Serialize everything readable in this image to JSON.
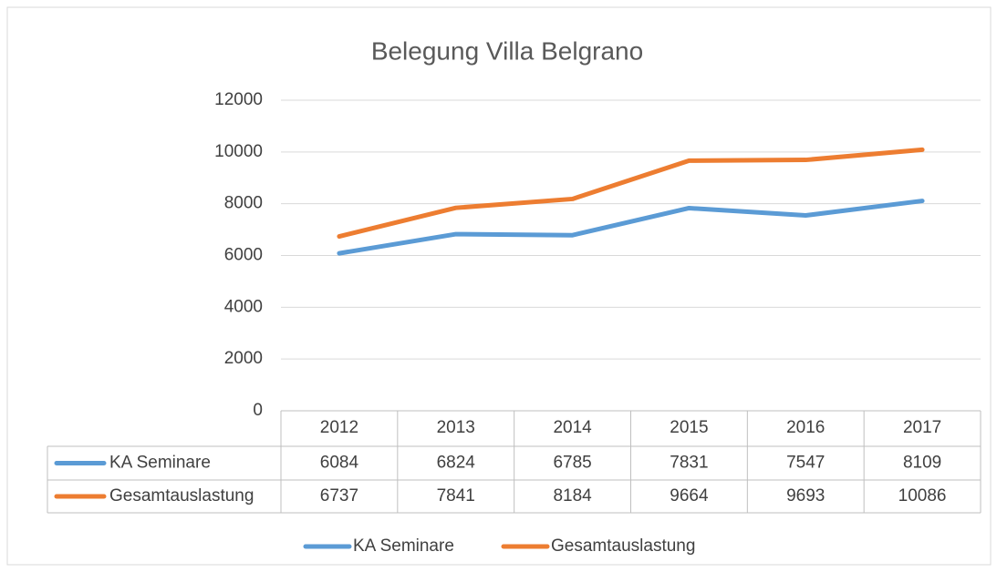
{
  "chart_data": {
    "type": "line",
    "title": "Belegung Villa Belgrano",
    "categories": [
      "2012",
      "2013",
      "2014",
      "2015",
      "2016",
      "2017"
    ],
    "series": [
      {
        "name": "KA Seminare",
        "color": "#5b9bd5",
        "values": [
          6084,
          6824,
          6785,
          7831,
          7547,
          8109
        ]
      },
      {
        "name": "Gesamtauslastung",
        "color": "#ed7d31",
        "values": [
          6737,
          7841,
          8184,
          9664,
          9693,
          10086
        ]
      }
    ],
    "ylim": [
      0,
      12000
    ],
    "yticks": [
      0,
      2000,
      4000,
      6000,
      8000,
      10000,
      12000
    ],
    "grid": true,
    "legend": "bottom",
    "data_table": true
  }
}
